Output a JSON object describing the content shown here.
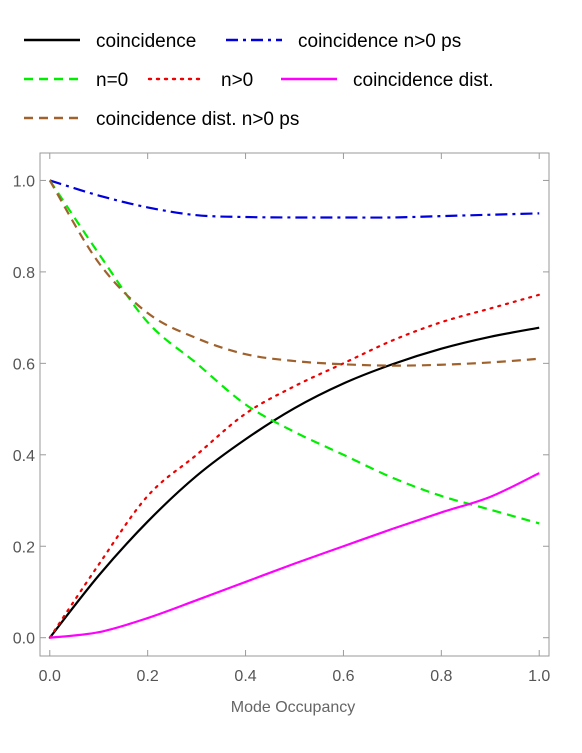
{
  "chart_data": {
    "type": "line",
    "title": "",
    "xlabel": "Mode Occupancy",
    "ylabel": "",
    "xlim": [
      -0.02,
      1.02
    ],
    "ylim": [
      -0.04,
      1.06
    ],
    "xticks": [
      0.0,
      0.2,
      0.4,
      0.6,
      0.8,
      1.0
    ],
    "yticks": [
      0.0,
      0.2,
      0.4,
      0.6,
      0.8,
      1.0
    ],
    "xtick_labels": [
      "0.0",
      "0.2",
      "0.4",
      "0.6",
      "0.8",
      "1.0"
    ],
    "ytick_labels": [
      "0.0",
      "0.2",
      "0.4",
      "0.6",
      "0.8",
      "1.0"
    ],
    "grid": false,
    "frame": true,
    "legend_position": "top",
    "x": [
      0.0,
      0.1,
      0.2,
      0.3,
      0.4,
      0.5,
      0.6,
      0.7,
      0.8,
      0.9,
      1.0
    ],
    "series": [
      {
        "name": "coincidence",
        "color": "#000000",
        "style": "solid",
        "values": [
          0.0,
          0.136,
          0.254,
          0.354,
          0.434,
          0.502,
          0.556,
          0.598,
          0.632,
          0.658,
          0.678
        ]
      },
      {
        "name": "coincidence n>0 ps",
        "color": "#0000dd",
        "style": "dashdot",
        "values": [
          1.0,
          0.967,
          0.941,
          0.924,
          0.92,
          0.919,
          0.919,
          0.919,
          0.922,
          0.925,
          0.928
        ]
      },
      {
        "name": "n=0",
        "color": "#00ee00",
        "style": "dashed",
        "values": [
          1.0,
          0.84,
          0.69,
          0.6,
          0.51,
          0.45,
          0.4,
          0.35,
          0.31,
          0.28,
          0.25
        ]
      },
      {
        "name": "n>0",
        "color": "#ee0000",
        "style": "dotted",
        "values": [
          0.0,
          0.16,
          0.31,
          0.4,
          0.49,
          0.55,
          0.6,
          0.65,
          0.69,
          0.72,
          0.75
        ]
      },
      {
        "name": "coincidence dist.",
        "color": "#ff00ff",
        "style": "solid",
        "values": [
          0.0,
          0.012,
          0.043,
          0.082,
          0.122,
          0.162,
          0.2,
          0.238,
          0.274,
          0.308,
          0.36
        ]
      },
      {
        "name": "coincidence dist. n>0 ps",
        "color": "#a0622d",
        "style": "dashed",
        "values": [
          1.0,
          0.82,
          0.71,
          0.655,
          0.62,
          0.605,
          0.598,
          0.595,
          0.597,
          0.602,
          0.61
        ]
      }
    ]
  }
}
